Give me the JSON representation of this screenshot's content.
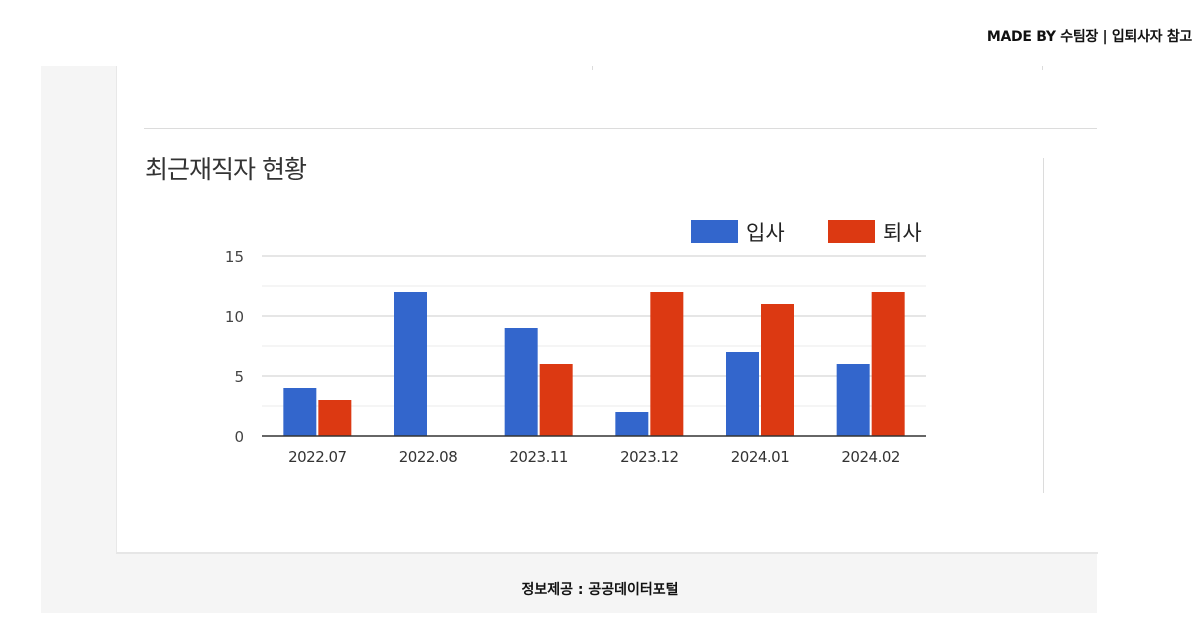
{
  "header": {
    "credit": "MADE BY 수팀장 | 입퇴사자 참고"
  },
  "section": {
    "title": "최근재직자 현황"
  },
  "footer": {
    "source": "정보제공 : 공공데이터포털"
  },
  "chart_data": {
    "type": "bar",
    "title": "",
    "xlabel": "",
    "ylabel": "",
    "categories": [
      "2022.07",
      "2022.08",
      "2023.11",
      "2023.12",
      "2024.01",
      "2024.02"
    ],
    "series": [
      {
        "name": "입사",
        "color": "#3366cc",
        "values": [
          4,
          12,
          9,
          2,
          7,
          6
        ]
      },
      {
        "name": "퇴사",
        "color": "#dc3912",
        "values": [
          3,
          0,
          6,
          12,
          11,
          12
        ]
      }
    ],
    "ylim": [
      0,
      15
    ],
    "yticks": [
      0,
      5,
      10,
      15
    ],
    "grid": true,
    "legend": "top-right"
  }
}
